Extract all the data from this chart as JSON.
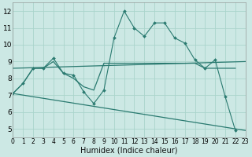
{
  "xlabel": "Humidex (Indice chaleur)",
  "bg_color": "#cce8e4",
  "grid_color": "#aad4cc",
  "line_color": "#2a7a70",
  "xlim": [
    0,
    23
  ],
  "ylim": [
    4.5,
    12.5
  ],
  "xticks": [
    0,
    1,
    2,
    3,
    4,
    5,
    6,
    7,
    8,
    9,
    10,
    11,
    12,
    13,
    14,
    15,
    16,
    17,
    18,
    19,
    20,
    21,
    22,
    23
  ],
  "yticks": [
    5,
    6,
    7,
    8,
    9,
    10,
    11,
    12
  ],
  "series0_x": [
    0,
    1,
    2,
    3,
    4,
    5,
    6,
    7,
    8,
    9,
    10,
    11,
    12,
    13,
    14,
    15,
    16,
    17,
    18,
    19,
    20,
    21,
    22
  ],
  "series0_y": [
    7.1,
    7.7,
    8.6,
    8.6,
    9.2,
    8.3,
    8.2,
    7.2,
    6.5,
    7.3,
    10.4,
    12.0,
    11.0,
    10.5,
    11.3,
    11.3,
    10.4,
    10.1,
    9.1,
    8.6,
    9.1,
    6.9,
    4.9
  ],
  "series1_x": [
    0,
    23
  ],
  "series1_y": [
    8.6,
    9.0
  ],
  "series2_x": [
    0,
    23
  ],
  "series2_y": [
    7.1,
    4.9
  ],
  "series3_x": [
    0,
    1,
    2,
    3,
    4,
    5,
    6,
    7,
    8,
    9,
    10,
    11,
    12,
    13,
    14,
    15,
    16,
    17,
    18,
    19,
    20,
    21,
    22
  ],
  "series3_y": [
    7.1,
    7.7,
    8.6,
    8.6,
    9.0,
    8.3,
    8.0,
    7.5,
    7.3,
    8.9,
    8.9,
    8.9,
    8.9,
    8.9,
    8.9,
    8.9,
    8.9,
    8.9,
    8.9,
    8.6,
    8.6,
    8.6,
    8.6
  ],
  "xtick_fontsize": 5.5,
  "ytick_fontsize": 6.5,
  "xlabel_fontsize": 7.0
}
